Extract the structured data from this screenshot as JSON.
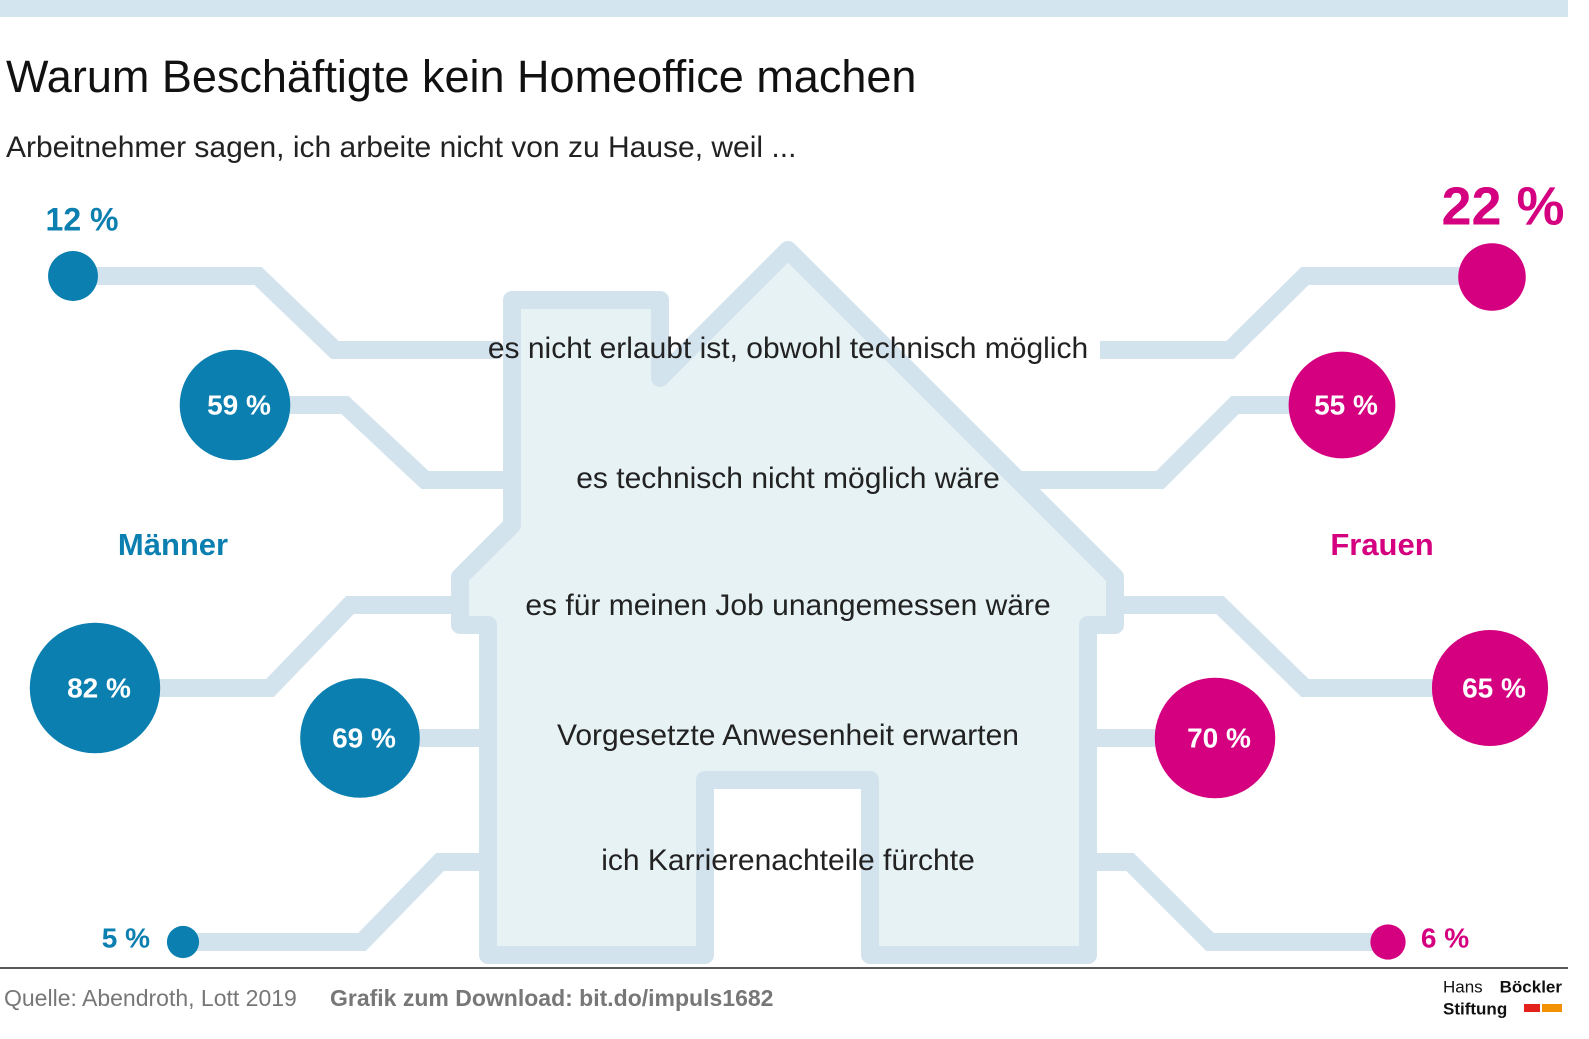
{
  "chart_data": {
    "type": "bubble",
    "title": "Warum Beschäftigte kein Homeoffice machen",
    "subtitle": "Arbeitnehmer sagen, ich arbeite nicht von zu Hause, weil ...",
    "categories": [
      "es nicht erlaubt ist, obwohl technisch möglich",
      "es technisch nicht möglich wäre",
      "es für meinen Job unangemessen wäre",
      "Vorgesetzte Anwesenheit erwarten",
      "ich Karrierenachteile fürchte"
    ],
    "series": [
      {
        "name": "Männer",
        "color": "#0a7fb0",
        "values": [
          12,
          59,
          82,
          69,
          5
        ],
        "value_labels": [
          "12 %",
          "59 %",
          "82 %",
          "69 %",
          "5 %"
        ]
      },
      {
        "name": "Frauen",
        "color": "#d4007f",
        "values": [
          22,
          55,
          65,
          70,
          6
        ],
        "value_labels": [
          "22 %",
          "55 %",
          "65 %",
          "70 %",
          "6 %"
        ]
      }
    ],
    "source": "Quelle: Abendroth, Lott 2019",
    "download": "Grafik zum Download: bit.do/impuls1682",
    "brand": [
      "Hans",
      "Böckler",
      "Stiftung"
    ]
  }
}
